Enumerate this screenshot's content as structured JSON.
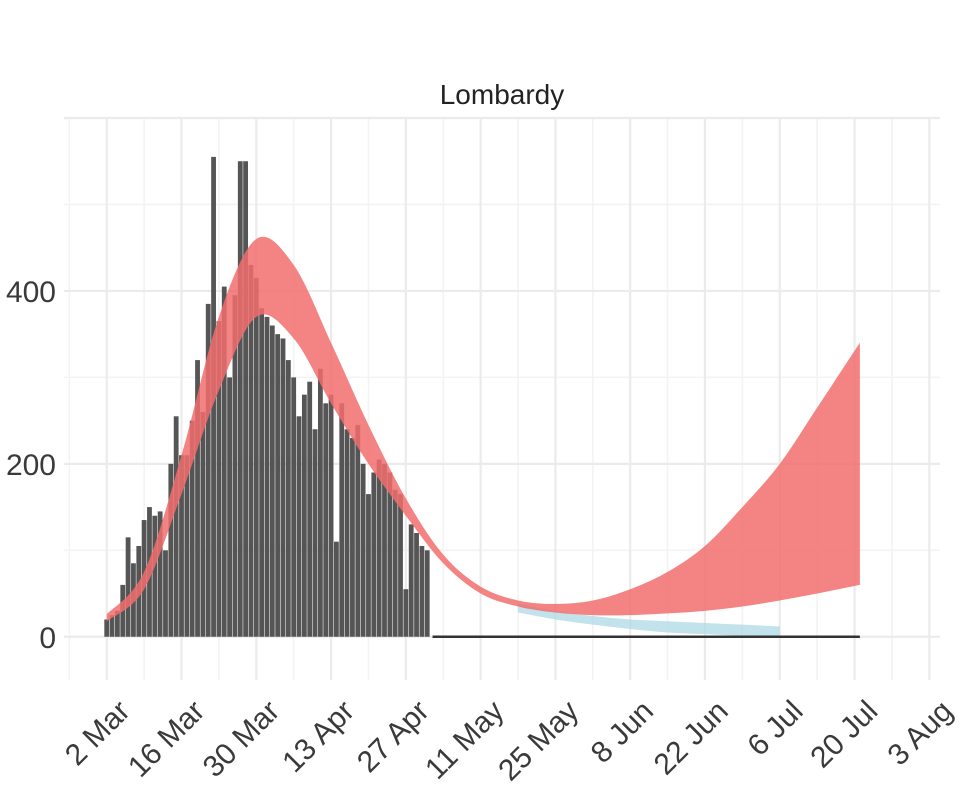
{
  "chart_data": {
    "type": "bar",
    "title": "Lombardy",
    "xlabel": "",
    "ylabel": "",
    "grid": true,
    "legend": "none",
    "x_range": [
      "2020-02-23",
      "2020-08-05"
    ],
    "ylim": [
      -50,
      600
    ],
    "y_ticks": [
      0,
      200,
      400
    ],
    "x_ticks": [
      {
        "date": "2020-03-02",
        "label": "2 Mar"
      },
      {
        "date": "2020-03-16",
        "label": "16 Mar"
      },
      {
        "date": "2020-03-30",
        "label": "30 Mar"
      },
      {
        "date": "2020-04-13",
        "label": "13 Apr"
      },
      {
        "date": "2020-04-27",
        "label": "27 Apr"
      },
      {
        "date": "2020-05-11",
        "label": "11 May"
      },
      {
        "date": "2020-05-25",
        "label": "25 May"
      },
      {
        "date": "2020-06-08",
        "label": "8 Jun"
      },
      {
        "date": "2020-06-22",
        "label": "22 Jun"
      },
      {
        "date": "2020-07-06",
        "label": "6 Jul"
      },
      {
        "date": "2020-07-20",
        "label": "20 Jul"
      },
      {
        "date": "2020-08-03",
        "label": "3 Aug"
      }
    ],
    "bars": {
      "start_date": "2020-03-02",
      "color": "#555555",
      "values": [
        20,
        25,
        30,
        60,
        115,
        85,
        105,
        135,
        150,
        140,
        145,
        100,
        200,
        255,
        210,
        210,
        250,
        320,
        260,
        385,
        555,
        365,
        405,
        300,
        395,
        550,
        550,
        430,
        415,
        380,
        370,
        360,
        350,
        345,
        320,
        300,
        255,
        280,
        295,
        240,
        310,
        270,
        280,
        110,
        270,
        240,
        230,
        245,
        200,
        165,
        190,
        205,
        200,
        190,
        170,
        165,
        55,
        130,
        120,
        105,
        100
      ]
    },
    "observed_line": {
      "dates": [
        "2020-05-02",
        "2020-07-21"
      ],
      "values": [
        0,
        0
      ],
      "color": "#333333"
    },
    "bands": [
      {
        "color": "#add8e6",
        "dates": [
          "2020-05-18",
          "2020-05-25",
          "2020-06-01",
          "2020-06-08",
          "2020-06-15",
          "2020-06-22",
          "2020-06-29",
          "2020-07-06"
        ],
        "lower": [
          28,
          20,
          14,
          9,
          5,
          3,
          1,
          0
        ],
        "upper": [
          38,
          30,
          24,
          20,
          18,
          16,
          14,
          12
        ]
      },
      {
        "color": "#f26d6d",
        "dates": [
          "2020-03-02",
          "2020-03-09",
          "2020-03-16",
          "2020-03-23",
          "2020-03-30",
          "2020-04-06",
          "2020-04-13",
          "2020-04-20",
          "2020-04-27",
          "2020-05-04",
          "2020-05-11",
          "2020-05-18",
          "2020-05-25",
          "2020-06-01",
          "2020-06-08",
          "2020-06-15",
          "2020-06-22",
          "2020-06-29",
          "2020-07-06",
          "2020-07-13",
          "2020-07-21"
        ],
        "lower": [
          18,
          55,
          165,
          285,
          370,
          345,
          270,
          200,
          140,
          85,
          50,
          35,
          28,
          25,
          25,
          27,
          30,
          35,
          42,
          50,
          60
        ],
        "upper": [
          26,
          75,
          210,
          370,
          460,
          430,
          340,
          245,
          160,
          95,
          58,
          42,
          38,
          42,
          55,
          75,
          105,
          150,
          200,
          265,
          340
        ]
      }
    ]
  }
}
